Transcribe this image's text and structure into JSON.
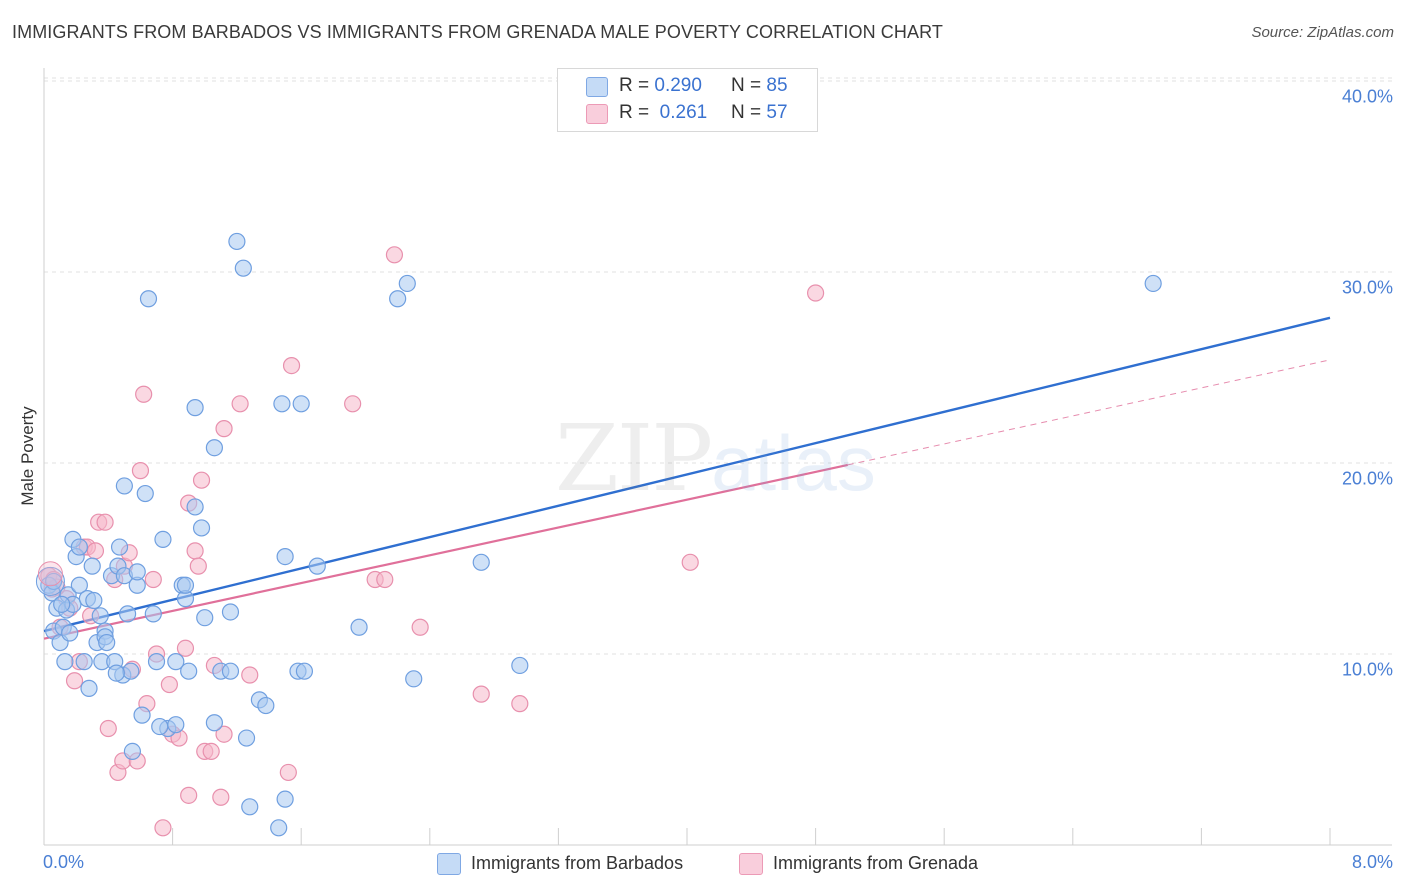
{
  "title": "IMMIGRANTS FROM BARBADOS VS IMMIGRANTS FROM GRENADA MALE POVERTY CORRELATION CHART",
  "source": "Source: ZipAtlas.com",
  "watermark": {
    "zip": "ZIP",
    "atlas": "atlas"
  },
  "legend": {
    "rows": [
      {
        "r_label": "R =",
        "r_value": "0.290",
        "n_label": "N =",
        "n_value": "85",
        "color": "#a8c8f0"
      },
      {
        "r_label": "R =",
        "r_value": "0.261",
        "n_label": "N =",
        "n_value": "57",
        "color": "#f5b8cb"
      }
    ]
  },
  "chart_data": {
    "type": "scatter",
    "title": "IMMIGRANTS FROM BARBADOS VS IMMIGRANTS FROM GRENADA MALE POVERTY CORRELATION CHART",
    "xlabel": "",
    "ylabel": "Male Poverty",
    "xlim": [
      0,
      8
    ],
    "ylim": [
      0,
      42
    ],
    "x_ticks": [
      "0.0%",
      "8.0%"
    ],
    "y_ticks": [
      {
        "value": 10,
        "label": "10.0%"
      },
      {
        "value": 20,
        "label": "20.0%"
      },
      {
        "value": 30,
        "label": "30.0%"
      },
      {
        "value": 40,
        "label": "40.0%"
      }
    ],
    "grid": "horizontal dashed",
    "series": [
      {
        "name": "Immigrants from Barbados",
        "color": "#a8c8f0",
        "stroke": "#6f9fe0",
        "line_color": "#2f6fd0",
        "trend": {
          "x": [
            0,
            8
          ],
          "y": [
            11.2,
            27.6
          ]
        },
        "points": [
          [
            0.03,
            13.6
          ],
          [
            0.05,
            13.2
          ],
          [
            0.06,
            11.2
          ],
          [
            0.08,
            12.4
          ],
          [
            0.1,
            10.6
          ],
          [
            0.12,
            11.4
          ],
          [
            0.13,
            9.6
          ],
          [
            0.14,
            12.3
          ],
          [
            0.15,
            13.1
          ],
          [
            0.18,
            16.0
          ],
          [
            0.18,
            12.6
          ],
          [
            0.2,
            15.1
          ],
          [
            0.22,
            13.6
          ],
          [
            0.22,
            15.6
          ],
          [
            0.25,
            9.6
          ],
          [
            0.27,
            12.9
          ],
          [
            0.28,
            8.2
          ],
          [
            0.3,
            14.6
          ],
          [
            0.33,
            10.6
          ],
          [
            0.35,
            12.0
          ],
          [
            0.36,
            9.6
          ],
          [
            0.38,
            11.2
          ],
          [
            0.38,
            10.9
          ],
          [
            0.39,
            10.6
          ],
          [
            0.42,
            14.1
          ],
          [
            0.44,
            9.6
          ],
          [
            0.46,
            14.6
          ],
          [
            0.47,
            15.6
          ],
          [
            0.49,
            8.9
          ],
          [
            0.5,
            14.1
          ],
          [
            0.5,
            18.8
          ],
          [
            0.52,
            12.1
          ],
          [
            0.54,
            9.1
          ],
          [
            0.55,
            4.9
          ],
          [
            0.58,
            13.6
          ],
          [
            0.58,
            14.3
          ],
          [
            0.61,
            6.8
          ],
          [
            0.63,
            18.4
          ],
          [
            0.65,
            28.6
          ],
          [
            0.68,
            12.1
          ],
          [
            0.7,
            9.6
          ],
          [
            0.74,
            16.0
          ],
          [
            0.77,
            6.1
          ],
          [
            0.82,
            6.3
          ],
          [
            0.82,
            9.6
          ],
          [
            0.86,
            13.6
          ],
          [
            0.88,
            12.9
          ],
          [
            0.88,
            13.6
          ],
          [
            0.9,
            9.1
          ],
          [
            0.94,
            17.7
          ],
          [
            0.94,
            22.9
          ],
          [
            0.98,
            16.6
          ],
          [
            1.0,
            11.9
          ],
          [
            1.06,
            6.4
          ],
          [
            1.06,
            20.8
          ],
          [
            1.1,
            9.1
          ],
          [
            1.16,
            12.2
          ],
          [
            1.16,
            9.1
          ],
          [
            1.2,
            31.6
          ],
          [
            1.24,
            30.2
          ],
          [
            1.26,
            5.6
          ],
          [
            1.28,
            2.0
          ],
          [
            1.34,
            7.6
          ],
          [
            1.38,
            7.3
          ],
          [
            1.46,
            0.9
          ],
          [
            1.48,
            23.1
          ],
          [
            1.5,
            15.1
          ],
          [
            1.5,
            2.4
          ],
          [
            1.58,
            9.1
          ],
          [
            1.6,
            23.1
          ],
          [
            1.62,
            9.1
          ],
          [
            1.7,
            14.6
          ],
          [
            1.96,
            11.4
          ],
          [
            2.2,
            28.6
          ],
          [
            2.26,
            29.4
          ],
          [
            2.3,
            8.7
          ],
          [
            2.72,
            14.8
          ],
          [
            2.96,
            9.4
          ],
          [
            6.9,
            29.4
          ],
          [
            0.06,
            13.8
          ],
          [
            0.11,
            12.6
          ],
          [
            0.16,
            11.1
          ],
          [
            0.31,
            12.8
          ],
          [
            0.45,
            9.0
          ],
          [
            0.72,
            6.2
          ]
        ]
      },
      {
        "name": "Immigrants from Grenada",
        "color": "#f5b8cb",
        "stroke": "#e890ad",
        "line_color": "#e0709a",
        "trend": {
          "x": [
            0,
            5
          ],
          "y": [
            10.8,
            19.9
          ]
        },
        "trend_dashed": {
          "x": [
            5,
            8
          ],
          "y": [
            19.9,
            25.4
          ]
        },
        "points": [
          [
            0.03,
            14.1
          ],
          [
            0.05,
            13.4
          ],
          [
            0.06,
            13.9
          ],
          [
            0.1,
            11.4
          ],
          [
            0.14,
            12.9
          ],
          [
            0.16,
            12.4
          ],
          [
            0.19,
            8.6
          ],
          [
            0.22,
            9.6
          ],
          [
            0.25,
            15.6
          ],
          [
            0.27,
            15.6
          ],
          [
            0.32,
            15.4
          ],
          [
            0.34,
            16.9
          ],
          [
            0.38,
            16.9
          ],
          [
            0.4,
            6.1
          ],
          [
            0.44,
            13.9
          ],
          [
            0.46,
            3.8
          ],
          [
            0.49,
            4.4
          ],
          [
            0.5,
            14.6
          ],
          [
            0.53,
            15.3
          ],
          [
            0.58,
            4.4
          ],
          [
            0.6,
            19.6
          ],
          [
            0.62,
            23.6
          ],
          [
            0.64,
            7.4
          ],
          [
            0.68,
            13.9
          ],
          [
            0.7,
            10.0
          ],
          [
            0.74,
            0.9
          ],
          [
            0.78,
            8.4
          ],
          [
            0.8,
            5.8
          ],
          [
            0.84,
            5.6
          ],
          [
            0.88,
            10.3
          ],
          [
            0.9,
            17.9
          ],
          [
            0.9,
            2.6
          ],
          [
            0.94,
            15.4
          ],
          [
            0.96,
            14.6
          ],
          [
            0.98,
            19.1
          ],
          [
            1.0,
            4.9
          ],
          [
            1.04,
            4.9
          ],
          [
            1.06,
            9.4
          ],
          [
            1.1,
            2.5
          ],
          [
            1.12,
            5.8
          ],
          [
            1.12,
            21.8
          ],
          [
            1.22,
            23.1
          ],
          [
            1.28,
            8.9
          ],
          [
            1.52,
            3.8
          ],
          [
            1.54,
            25.1
          ],
          [
            1.92,
            23.1
          ],
          [
            2.06,
            13.9
          ],
          [
            2.12,
            13.9
          ],
          [
            2.18,
            30.9
          ],
          [
            2.34,
            11.4
          ],
          [
            2.72,
            7.9
          ],
          [
            2.96,
            7.4
          ],
          [
            4.02,
            14.8
          ],
          [
            4.8,
            28.9
          ],
          [
            0.08,
            13.5
          ],
          [
            0.29,
            12.0
          ],
          [
            0.55,
            9.2
          ]
        ]
      }
    ]
  },
  "bottom_legend": [
    {
      "label": "Immigrants from Barbados",
      "color": "#a8c8f0"
    },
    {
      "label": "Immigrants from Grenada",
      "color": "#f5b8cb"
    }
  ]
}
